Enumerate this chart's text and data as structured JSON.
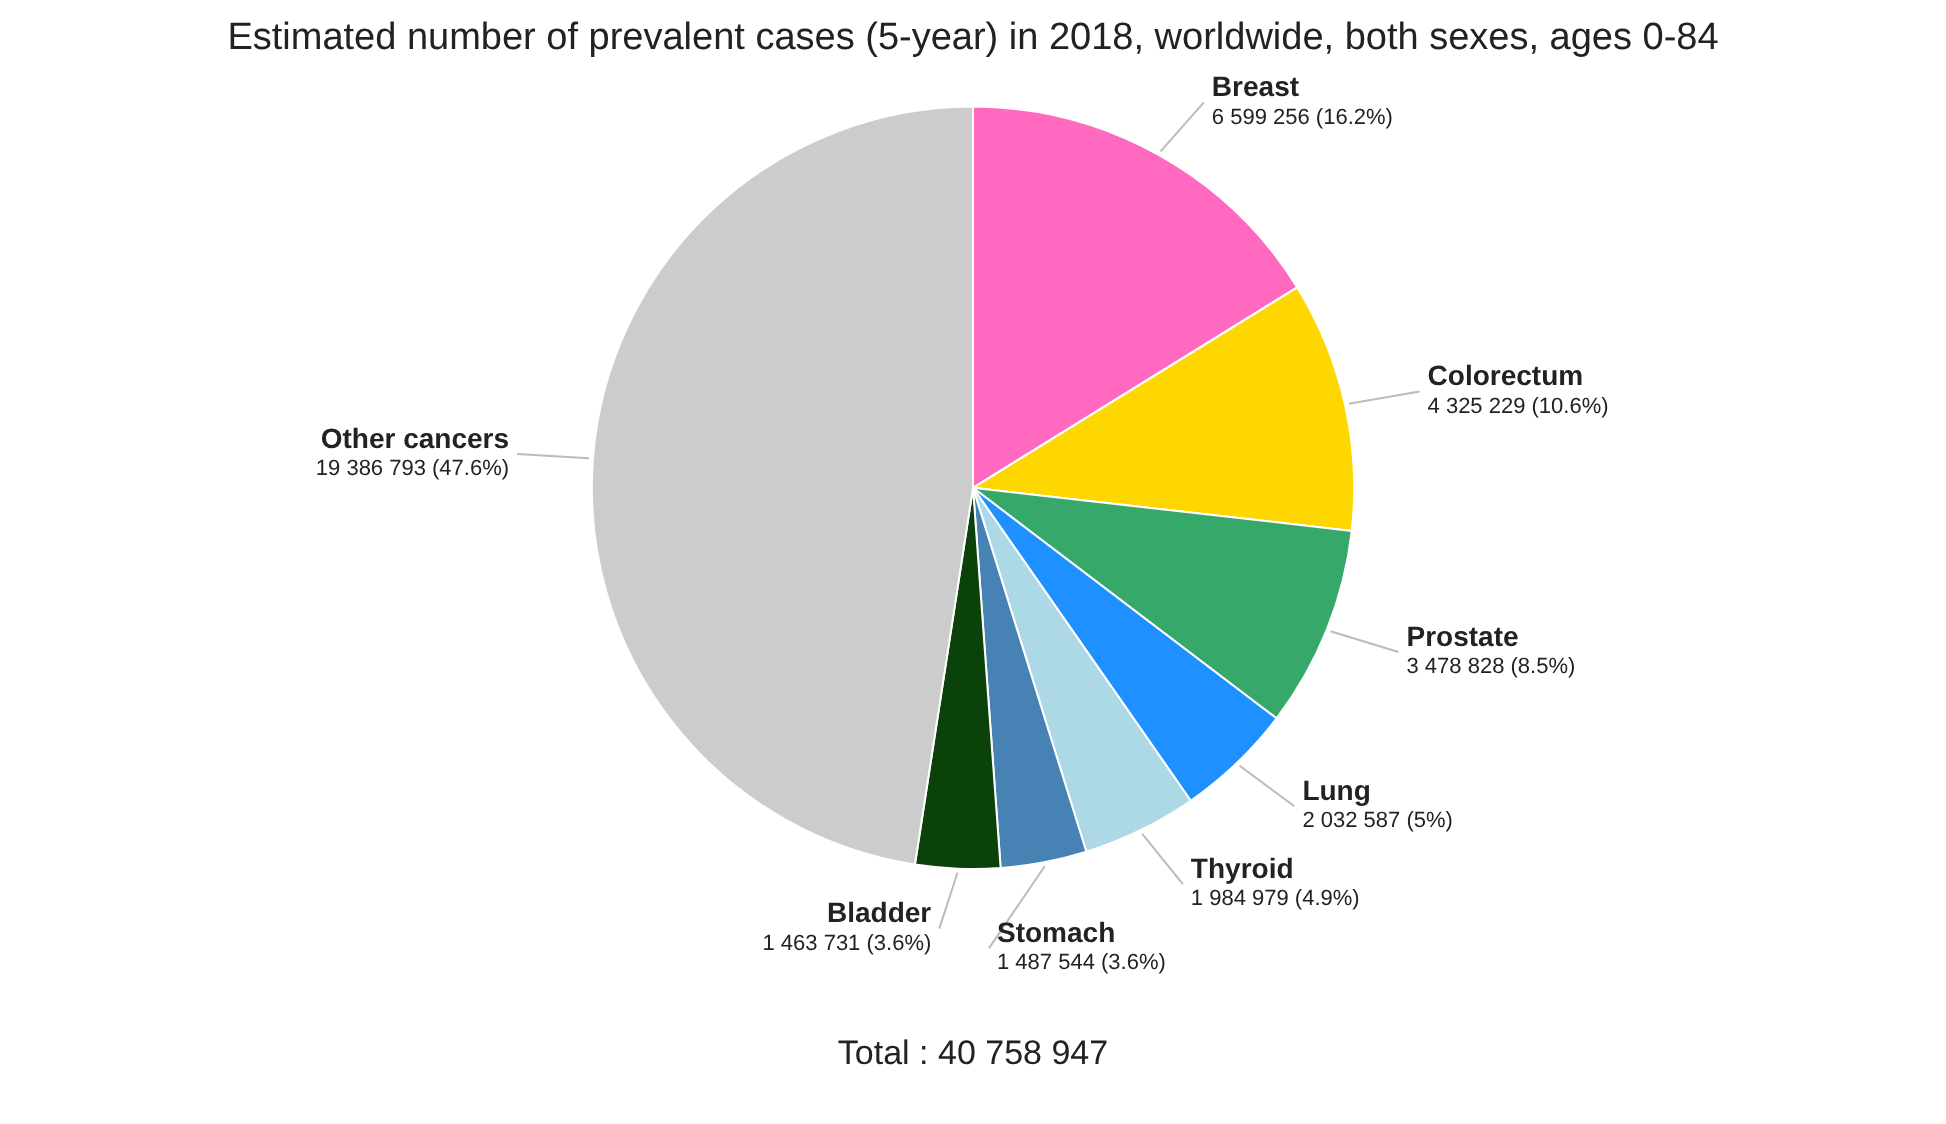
{
  "chart_data": {
    "type": "pie",
    "title": "Estimated number of prevalent cases (5-year) in 2018, worldwide, both sexes, ages 0-84",
    "categories": [
      "Breast",
      "Colorectum",
      "Prostate",
      "Lung",
      "Thyroid",
      "Stomach",
      "Bladder",
      "Other cancers"
    ],
    "values": [
      6599256,
      4325229,
      3478828,
      2032587,
      1984979,
      1487544,
      1463731,
      19386793
    ],
    "value_labels": [
      "6 599 256 (16.2%)",
      "4 325 229 (10.6%)",
      "3 478 828 (8.5%)",
      "2 032 587 (5%)",
      "1 984 979 (4.9%)",
      "1 487 544 (3.6%)",
      "1 463 731 (3.6%)",
      "19 386 793 (47.6%)"
    ],
    "colors": [
      "#ff69c0",
      "#ffd700",
      "#36a86a",
      "#1e90ff",
      "#add8e6",
      "#4682b4",
      "#0b4209",
      "#cccccc"
    ],
    "legend": false,
    "annotations": [
      "Total : 40 758 947"
    ]
  }
}
